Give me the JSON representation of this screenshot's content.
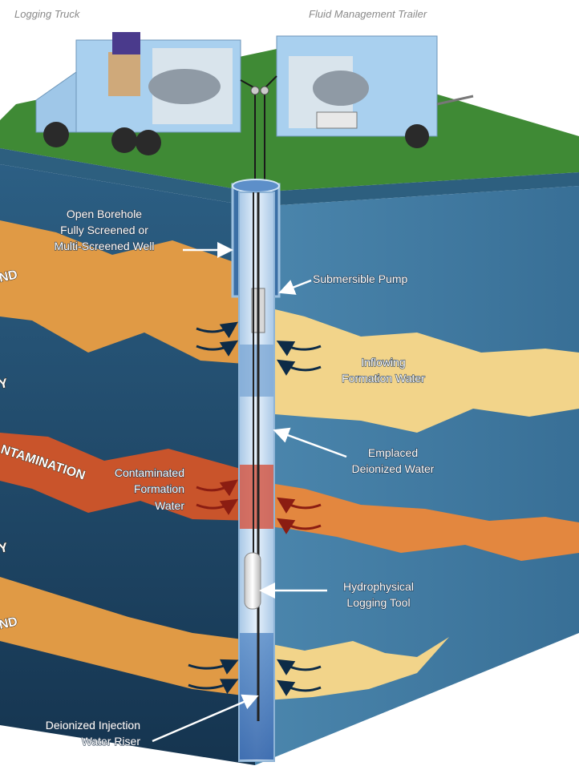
{
  "labels": {
    "logging_truck": "Logging Truck",
    "fluid_trailer": "Fluid Management Trailer",
    "open_borehole": [
      "Open Borehole",
      "Fully Screened or",
      "Multi-Screened Well"
    ],
    "submersible_pump": "Submersible Pump",
    "inflowing_water": [
      "Inflowing",
      "Formation Water"
    ],
    "emplaced_water": [
      "Emplaced",
      "Deionized Water"
    ],
    "contaminated_water": [
      "Contaminated",
      "Formation",
      "Water"
    ],
    "logging_tool": [
      "Hydrophysical",
      "Logging Tool"
    ],
    "injection_riser": [
      "Deionized Injection",
      "Water Riser"
    ]
  },
  "strata_fragments": {
    "s1": "ND",
    "s2": "Y",
    "contamination": "NTAMINATION",
    "s3": "Y",
    "s4": "ND"
  },
  "colors": {
    "sky": "#ffffff",
    "grass": "#3f8a35",
    "blue_dark": "#1f4a6e",
    "blue_mid": "#2f6a8e",
    "sand_orange": "#e09a45",
    "sand_light": "#f2d48a",
    "contamination": "#c9542b",
    "borehole": "#cfe3f5",
    "truck": "#a9d0ef"
  }
}
